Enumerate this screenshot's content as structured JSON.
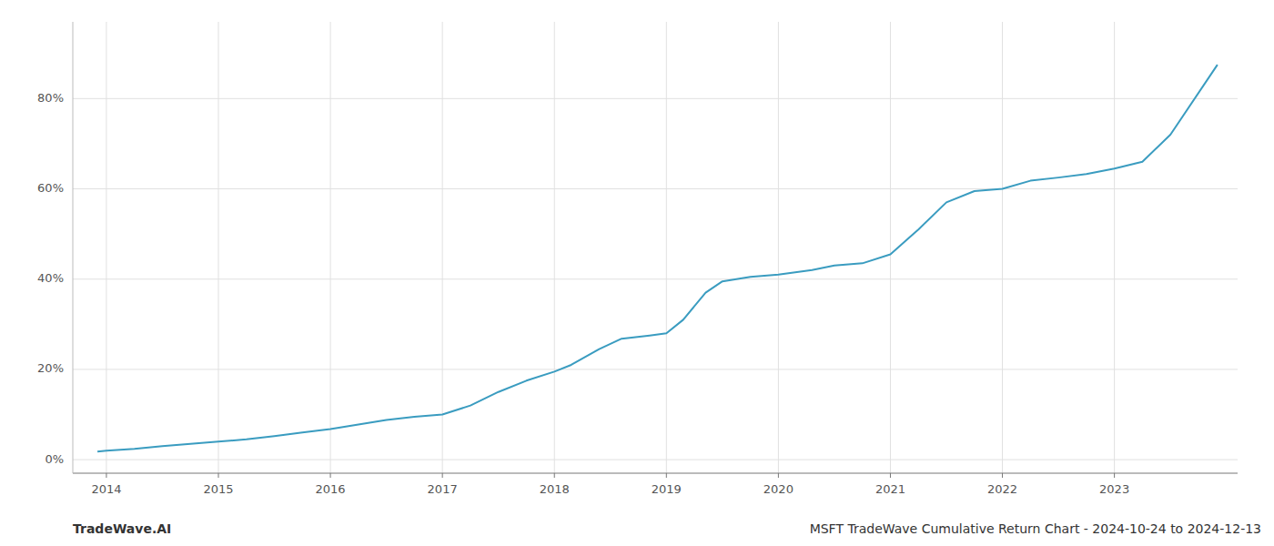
{
  "chart_data": {
    "type": "line",
    "title": "MSFT TradeWave Cumulative Return Chart - 2024-10-24 to 2024-12-13",
    "annotations": [
      "TradeWave.AI"
    ],
    "color": "#3a9cc0",
    "grid": true,
    "x": [
      2013.92,
      2014.0,
      2014.25,
      2014.5,
      2014.75,
      2015.0,
      2015.25,
      2015.5,
      2015.75,
      2016.0,
      2016.25,
      2016.5,
      2016.75,
      2017.0,
      2017.25,
      2017.5,
      2017.75,
      2018.0,
      2018.15,
      2018.4,
      2018.6,
      2018.85,
      2019.0,
      2019.15,
      2019.35,
      2019.5,
      2019.75,
      2020.0,
      2020.15,
      2020.3,
      2020.5,
      2020.75,
      2021.0,
      2021.25,
      2021.5,
      2021.75,
      2022.0,
      2022.25,
      2022.5,
      2022.75,
      2023.0,
      2023.25,
      2023.5,
      2023.92
    ],
    "values": [
      0.018,
      0.02,
      0.024,
      0.03,
      0.035,
      0.04,
      0.045,
      0.052,
      0.06,
      0.068,
      0.078,
      0.088,
      0.095,
      0.1,
      0.12,
      0.15,
      0.175,
      0.195,
      0.21,
      0.245,
      0.268,
      0.275,
      0.28,
      0.31,
      0.37,
      0.395,
      0.405,
      0.41,
      0.415,
      0.42,
      0.43,
      0.435,
      0.455,
      0.51,
      0.57,
      0.595,
      0.6,
      0.618,
      0.625,
      0.633,
      0.645,
      0.66,
      0.72,
      0.875
    ],
    "xlim": [
      2013.7,
      2024.1
    ],
    "ylim": [
      -0.03,
      0.97
    ],
    "xticks": [
      2014,
      2015,
      2016,
      2017,
      2018,
      2019,
      2020,
      2021,
      2022,
      2023
    ],
    "yticks": [
      {
        "value": 0,
        "label": "0%"
      },
      {
        "value": 0.2,
        "label": "20%"
      },
      {
        "value": 0.4,
        "label": "40%"
      },
      {
        "value": 0.6,
        "label": "60%"
      },
      {
        "value": 0.8,
        "label": "80%"
      }
    ]
  }
}
